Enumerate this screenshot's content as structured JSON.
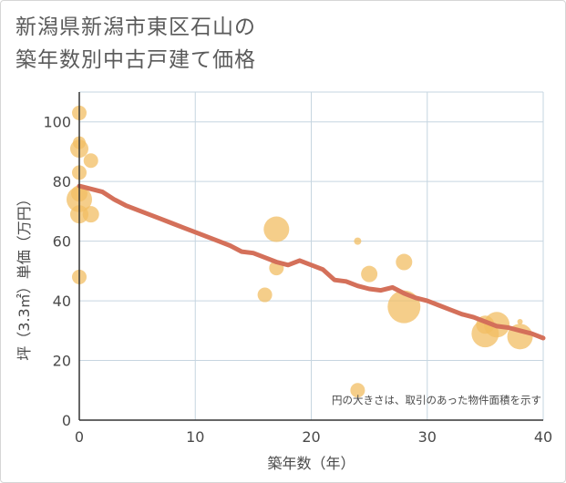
{
  "title_lines": [
    "新潟県新潟市東区石山の",
    "築年数別中古戸建て価格"
  ],
  "chart_data": {
    "type": "scatter",
    "xlabel": "築年数（年）",
    "ylabel": "坪（3.3㎡）単価（万円）",
    "xlim": [
      0,
      40
    ],
    "ylim": [
      0,
      110
    ],
    "x_ticks": [
      0,
      10,
      20,
      30,
      40
    ],
    "y_ticks": [
      0,
      20,
      40,
      60,
      80,
      100
    ],
    "grid": true,
    "note": "円の大きさは、取引のあった物件面積を示す",
    "colors": {
      "bubble": "#f2bd63",
      "line": "#d4705a",
      "grid": "#c6d5e0"
    },
    "bubbles": [
      {
        "x": 0,
        "y": 103,
        "size": 8
      },
      {
        "x": 0,
        "y": 93,
        "size": 7
      },
      {
        "x": 0,
        "y": 91,
        "size": 10
      },
      {
        "x": 0,
        "y": 83,
        "size": 8
      },
      {
        "x": 0,
        "y": 76,
        "size": 9
      },
      {
        "x": 0,
        "y": 74,
        "size": 14
      },
      {
        "x": 0,
        "y": 69,
        "size": 10
      },
      {
        "x": 0,
        "y": 48,
        "size": 8
      },
      {
        "x": 1,
        "y": 87,
        "size": 8
      },
      {
        "x": 1,
        "y": 69,
        "size": 9
      },
      {
        "x": 16,
        "y": 42,
        "size": 8
      },
      {
        "x": 17,
        "y": 64,
        "size": 14
      },
      {
        "x": 17,
        "y": 51,
        "size": 8
      },
      {
        "x": 24,
        "y": 60,
        "size": 4
      },
      {
        "x": 24,
        "y": 10,
        "size": 8
      },
      {
        "x": 25,
        "y": 49,
        "size": 9
      },
      {
        "x": 28,
        "y": 53,
        "size": 9
      },
      {
        "x": 28,
        "y": 38,
        "size": 18
      },
      {
        "x": 35,
        "y": 32,
        "size": 10
      },
      {
        "x": 35,
        "y": 29,
        "size": 15
      },
      {
        "x": 36,
        "y": 32,
        "size": 14
      },
      {
        "x": 38,
        "y": 33,
        "size": 3
      },
      {
        "x": 38,
        "y": 28,
        "size": 14
      }
    ],
    "trend": {
      "x": [
        0,
        2,
        3,
        4,
        5,
        6,
        7,
        8,
        9,
        10,
        11,
        12,
        13,
        14,
        15,
        16,
        17,
        18,
        19,
        20,
        21,
        22,
        23,
        24,
        25,
        26,
        27,
        28,
        29,
        30,
        31,
        32,
        33,
        34,
        35,
        36,
        37,
        38,
        39,
        40
      ],
      "y": [
        78.5,
        76.5,
        74,
        72,
        70.5,
        69,
        67.5,
        66,
        64.5,
        63,
        61.5,
        60,
        58.5,
        56.5,
        56,
        54.5,
        53,
        52,
        53.5,
        52,
        50.5,
        47,
        46.5,
        45,
        44,
        43.5,
        44.5,
        42.5,
        41,
        40,
        38.5,
        37,
        35.5,
        34.5,
        33,
        31.5,
        31,
        30,
        29,
        27.5
      ]
    }
  }
}
